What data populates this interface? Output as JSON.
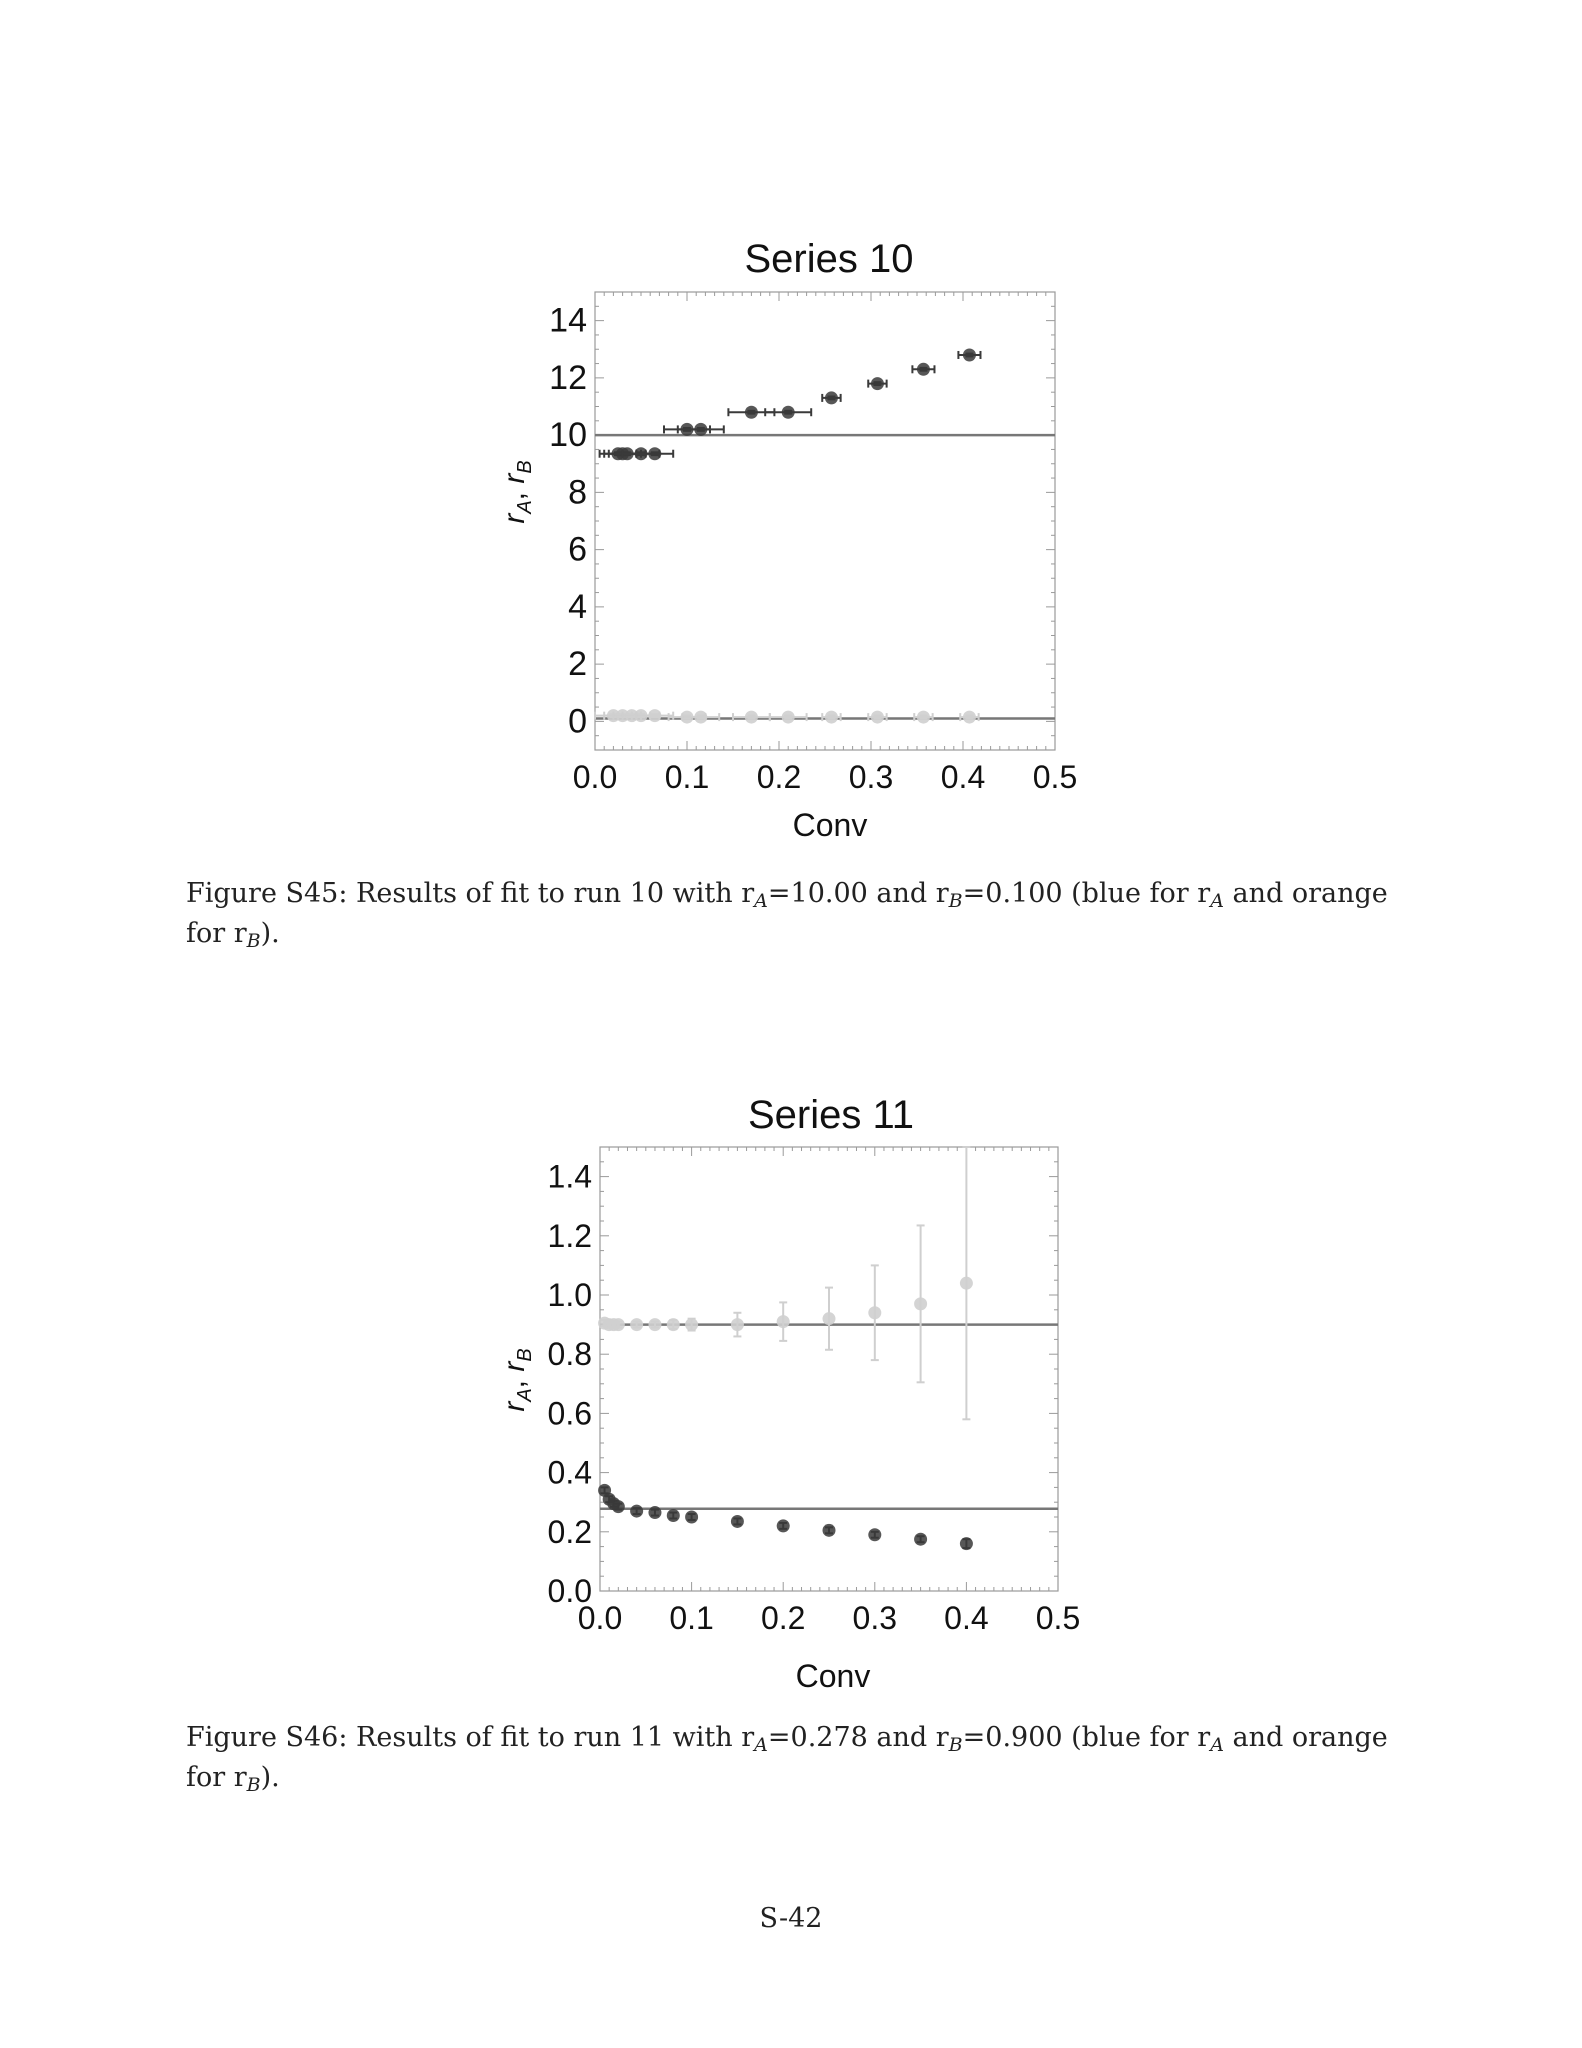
{
  "chart_data": [
    {
      "type": "scatter",
      "title": "Series 10",
      "xlabel": "Conv",
      "ylabel_parts": {
        "ra": "r",
        "a_sub": "A",
        "sep": ", ",
        "rb": "r",
        "b_sub": "B"
      },
      "xlim": [
        0,
        0.5
      ],
      "ylim": [
        -1,
        15
      ],
      "xticks": [
        "0.0",
        "0.1",
        "0.2",
        "0.3",
        "0.4",
        "0.5"
      ],
      "xtick_values": [
        0,
        0.1,
        0.2,
        0.3,
        0.4,
        0.5
      ],
      "yticks": [
        "0",
        "2",
        "4",
        "6",
        "8",
        "10",
        "12",
        "14"
      ],
      "ytick_values": [
        0,
        2,
        4,
        6,
        8,
        10,
        12,
        14
      ],
      "reference_lines": [
        10.0,
        0.1
      ],
      "colors": {
        "ra": "#3a3a3a",
        "rb": "#cfcfcf",
        "line": "#777777"
      },
      "series": [
        {
          "key": "ra",
          "points": [
            {
              "x": 0.025,
              "y": 9.35,
              "xerr": 0.02,
              "yerr": 0.05
            },
            {
              "x": 0.03,
              "y": 9.35,
              "xerr": 0.02,
              "yerr": 0.05
            },
            {
              "x": 0.035,
              "y": 9.35,
              "xerr": 0.02,
              "yerr": 0.05
            },
            {
              "x": 0.05,
              "y": 9.35,
              "xerr": 0.02,
              "yerr": 0.05
            },
            {
              "x": 0.065,
              "y": 9.35,
              "xerr": 0.02,
              "yerr": 0.05
            },
            {
              "x": 0.1,
              "y": 10.2,
              "xerr": 0.025,
              "yerr": 0.05
            },
            {
              "x": 0.115,
              "y": 10.2,
              "xerr": 0.025,
              "yerr": 0.05
            },
            {
              "x": 0.17,
              "y": 10.8,
              "xerr": 0.025,
              "yerr": 0.05
            },
            {
              "x": 0.21,
              "y": 10.8,
              "xerr": 0.025,
              "yerr": 0.05
            },
            {
              "x": 0.257,
              "y": 11.3,
              "xerr": 0.01,
              "yerr": 0.05
            },
            {
              "x": 0.307,
              "y": 11.8,
              "xerr": 0.01,
              "yerr": 0.05
            },
            {
              "x": 0.357,
              "y": 12.3,
              "xerr": 0.012,
              "yerr": 0.05
            },
            {
              "x": 0.407,
              "y": 12.8,
              "xerr": 0.012,
              "yerr": 0.05
            }
          ]
        },
        {
          "key": "rb",
          "points": [
            {
              "x": 0.02,
              "y": 0.2,
              "xerr": 0.02,
              "yerr": 0.05
            },
            {
              "x": 0.03,
              "y": 0.2,
              "xerr": 0.02,
              "yerr": 0.05
            },
            {
              "x": 0.04,
              "y": 0.2,
              "xerr": 0.02,
              "yerr": 0.05
            },
            {
              "x": 0.05,
              "y": 0.2,
              "xerr": 0.02,
              "yerr": 0.05
            },
            {
              "x": 0.065,
              "y": 0.2,
              "xerr": 0.02,
              "yerr": 0.05
            },
            {
              "x": 0.1,
              "y": 0.15,
              "xerr": 0.02,
              "yerr": 0.05
            },
            {
              "x": 0.115,
              "y": 0.15,
              "xerr": 0.02,
              "yerr": 0.05
            },
            {
              "x": 0.17,
              "y": 0.15,
              "xerr": 0.02,
              "yerr": 0.05
            },
            {
              "x": 0.21,
              "y": 0.15,
              "xerr": 0.02,
              "yerr": 0.05
            },
            {
              "x": 0.257,
              "y": 0.15,
              "xerr": 0.01,
              "yerr": 0.05
            },
            {
              "x": 0.307,
              "y": 0.15,
              "xerr": 0.01,
              "yerr": 0.05
            },
            {
              "x": 0.357,
              "y": 0.15,
              "xerr": 0.01,
              "yerr": 0.05
            },
            {
              "x": 0.407,
              "y": 0.15,
              "xerr": 0.01,
              "yerr": 0.05
            }
          ]
        }
      ]
    },
    {
      "type": "scatter",
      "title": "Series 11",
      "xlabel": "Conv",
      "ylabel_parts": {
        "ra": "r",
        "a_sub": "A",
        "sep": ", ",
        "rb": "r",
        "b_sub": "B"
      },
      "xlim": [
        0,
        0.5
      ],
      "ylim": [
        0,
        1.5
      ],
      "xticks": [
        "0.0",
        "0.1",
        "0.2",
        "0.3",
        "0.4",
        "0.5"
      ],
      "xtick_values": [
        0,
        0.1,
        0.2,
        0.3,
        0.4,
        0.5
      ],
      "yticks": [
        "0.0",
        "0.2",
        "0.4",
        "0.6",
        "0.8",
        "1.0",
        "1.2",
        "1.4"
      ],
      "ytick_values": [
        0,
        0.2,
        0.4,
        0.6,
        0.8,
        1.0,
        1.2,
        1.4
      ],
      "reference_lines": [
        0.278,
        0.9
      ],
      "colors": {
        "ra": "#3a3a3a",
        "rb": "#cfcfcf",
        "line": "#777777"
      },
      "series": [
        {
          "key": "ra",
          "points": [
            {
              "x": 0.005,
              "y": 0.34,
              "xerr": 0,
              "yerr": 0.01
            },
            {
              "x": 0.01,
              "y": 0.31,
              "xerr": 0,
              "yerr": 0.01
            },
            {
              "x": 0.015,
              "y": 0.295,
              "xerr": 0,
              "yerr": 0.01
            },
            {
              "x": 0.02,
              "y": 0.285,
              "xerr": 0,
              "yerr": 0.01
            },
            {
              "x": 0.04,
              "y": 0.27,
              "xerr": 0,
              "yerr": 0.01
            },
            {
              "x": 0.06,
              "y": 0.265,
              "xerr": 0,
              "yerr": 0.01
            },
            {
              "x": 0.08,
              "y": 0.255,
              "xerr": 0,
              "yerr": 0.01
            },
            {
              "x": 0.1,
              "y": 0.25,
              "xerr": 0,
              "yerr": 0.01
            },
            {
              "x": 0.15,
              "y": 0.235,
              "xerr": 0,
              "yerr": 0.01
            },
            {
              "x": 0.2,
              "y": 0.22,
              "xerr": 0,
              "yerr": 0.01
            },
            {
              "x": 0.25,
              "y": 0.205,
              "xerr": 0,
              "yerr": 0.01
            },
            {
              "x": 0.3,
              "y": 0.19,
              "xerr": 0,
              "yerr": 0.01
            },
            {
              "x": 0.35,
              "y": 0.175,
              "xerr": 0,
              "yerr": 0.01
            },
            {
              "x": 0.4,
              "y": 0.16,
              "xerr": 0,
              "yerr": 0.015
            }
          ]
        },
        {
          "key": "rb",
          "points": [
            {
              "x": 0.005,
              "y": 0.905,
              "xerr": 0,
              "yerr": 0.01
            },
            {
              "x": 0.01,
              "y": 0.9,
              "xerr": 0,
              "yerr": 0.01
            },
            {
              "x": 0.015,
              "y": 0.9,
              "xerr": 0,
              "yerr": 0.01
            },
            {
              "x": 0.02,
              "y": 0.9,
              "xerr": 0,
              "yerr": 0.01
            },
            {
              "x": 0.04,
              "y": 0.9,
              "xerr": 0,
              "yerr": 0.01
            },
            {
              "x": 0.06,
              "y": 0.9,
              "xerr": 0,
              "yerr": 0.01
            },
            {
              "x": 0.08,
              "y": 0.9,
              "xerr": 0,
              "yerr": 0.015
            },
            {
              "x": 0.1,
              "y": 0.9,
              "xerr": 0,
              "yerr": 0.02
            },
            {
              "x": 0.15,
              "y": 0.9,
              "xerr": 0,
              "yerr": 0.04
            },
            {
              "x": 0.2,
              "y": 0.91,
              "xerr": 0,
              "yerr": 0.065
            },
            {
              "x": 0.25,
              "y": 0.92,
              "xerr": 0,
              "yerr": 0.105
            },
            {
              "x": 0.3,
              "y": 0.94,
              "xerr": 0,
              "yerr": 0.16
            },
            {
              "x": 0.35,
              "y": 0.97,
              "xerr": 0,
              "yerr": 0.265
            },
            {
              "x": 0.4,
              "y": 1.04,
              "xerr": 0,
              "yerr": 0.46
            }
          ]
        }
      ]
    }
  ],
  "captions": [
    {
      "lead": "Figure S45: Results of fit to run 10 with r",
      "sub_a": "A",
      "mid1": "=10.00 and r",
      "sub_b": "B",
      "mid2": "=0.100 (blue for r",
      "sub_a2": "A",
      "mid3": " and orange for r",
      "sub_b2": "B",
      "tail": ")."
    },
    {
      "lead": "Figure S46: Results of fit to run 11 with r",
      "sub_a": "A",
      "mid1": "=0.278 and r",
      "sub_b": "B",
      "mid2": "=0.900 (blue for r",
      "sub_a2": "A",
      "mid3": " and orange for r",
      "sub_b2": "B",
      "tail": ")."
    }
  ],
  "page_number": "S-42"
}
